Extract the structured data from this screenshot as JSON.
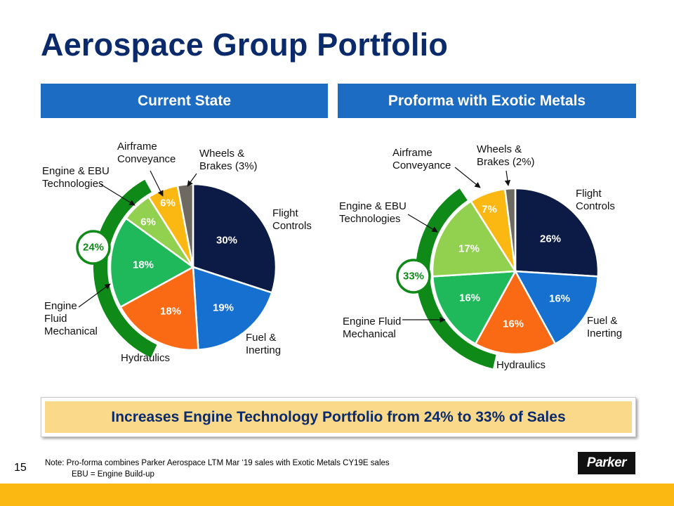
{
  "title": "Aerospace Group Portfolio",
  "banner": "Increases Engine Technology Portfolio from 24% to 33% of Sales",
  "page_number": "15",
  "notes": {
    "line1": "Note:  Pro-forma combines Parker Aerospace LTM Mar ‘19 sales with Exotic Metals CY19E sales",
    "line2": "EBU = Engine Build-up"
  },
  "logo_text": "Parker",
  "colors": {
    "title": "#0a2a6b",
    "header": "#1b6cc2",
    "flight_controls": "#0b1b45",
    "fuel_inerting": "#1570cf",
    "hydraulics": "#fa6a14",
    "engine_fluid": "#1fb85a",
    "engine_ebu": "#92d050",
    "airframe": "#fbb812",
    "wheels": "#6e6a61",
    "arc": "#0f8a18",
    "banner": "#fbd98a",
    "footer": "#fbb812"
  },
  "chart_data": [
    {
      "type": "pie",
      "title": "Current State",
      "segments": [
        {
          "name": "Flight Controls",
          "label": "Flight\nControls",
          "value": 30,
          "value_label": "30%"
        },
        {
          "name": "Fuel & Inerting",
          "label": "Fuel &\nInerting",
          "value": 19,
          "value_label": "19%"
        },
        {
          "name": "Hydraulics",
          "label": "Hydraulics",
          "value": 18,
          "value_label": "18%"
        },
        {
          "name": "Engine Fluid Mechanical",
          "label": "Engine\nFluid\nMechanical",
          "value": 18,
          "value_label": "18%"
        },
        {
          "name": "Engine & EBU Technologies",
          "label": "Engine & EBU\nTechnologies",
          "value": 6,
          "value_label": "6%"
        },
        {
          "name": "Airframe Conveyance",
          "label": "Airframe\nConveyance",
          "value": 6,
          "value_label": "6%"
        },
        {
          "name": "Wheels & Brakes",
          "label": "Wheels &\nBrakes (3%)",
          "value": 3,
          "value_label": ""
        }
      ],
      "engine_technology_total": "24%"
    },
    {
      "type": "pie",
      "title": "Proforma with Exotic Metals",
      "segments": [
        {
          "name": "Flight Controls",
          "label": "Flight\nControls",
          "value": 26,
          "value_label": "26%"
        },
        {
          "name": "Fuel & Inerting",
          "label": "Fuel &\nInerting",
          "value": 16,
          "value_label": "16%"
        },
        {
          "name": "Hydraulics",
          "label": "Hydraulics",
          "value": 16,
          "value_label": "16%"
        },
        {
          "name": "Engine Fluid Mechanical",
          "label": "Engine Fluid\nMechanical",
          "value": 16,
          "value_label": "16%"
        },
        {
          "name": "Engine & EBU Technologies",
          "label": "Engine & EBU\nTechnologies",
          "value": 17,
          "value_label": "17%"
        },
        {
          "name": "Airframe Conveyance",
          "label": "Airframe\nConveyance",
          "value": 7,
          "value_label": "7%"
        },
        {
          "name": "Wheels & Brakes",
          "label": "Wheels &\nBrakes (2%)",
          "value": 2,
          "value_label": ""
        }
      ],
      "engine_technology_total": "33%"
    }
  ]
}
